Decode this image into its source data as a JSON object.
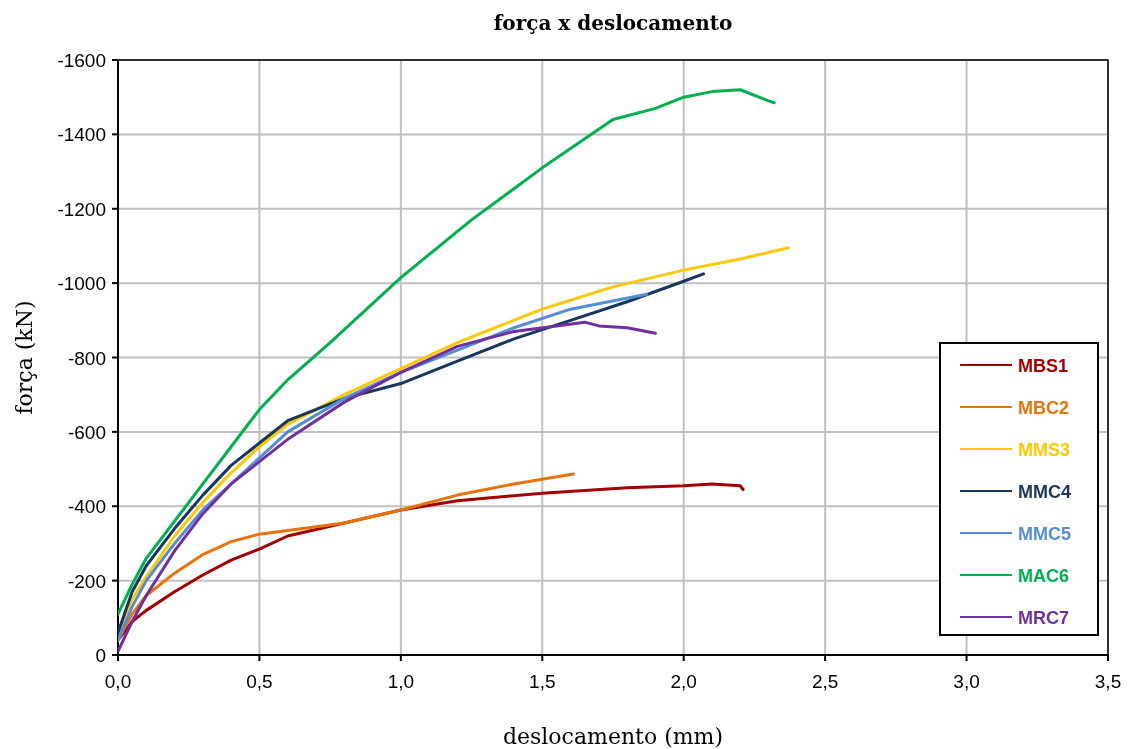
{
  "chart_data": {
    "type": "line",
    "title": "força x  deslocamento",
    "xlabel": "deslocamento (mm)",
    "ylabel": "força (kN)",
    "xlim": [
      0,
      3.5
    ],
    "ylim": [
      0,
      -1600
    ],
    "xticks": [
      {
        "value": 0,
        "label": "0,0"
      },
      {
        "value": 0.5,
        "label": "0,5"
      },
      {
        "value": 1,
        "label": "1,0"
      },
      {
        "value": 1.5,
        "label": "1,5"
      },
      {
        "value": 2,
        "label": "2,0"
      },
      {
        "value": 2.5,
        "label": "2,5"
      },
      {
        "value": 3,
        "label": "3,0"
      },
      {
        "value": 3.5,
        "label": "3,5"
      }
    ],
    "yticks": [
      0,
      -200,
      -400,
      -600,
      -800,
      -1000,
      -1200,
      -1400,
      -1600
    ],
    "grid": true,
    "legend": "right",
    "marker": "none",
    "line_style": "solid",
    "series": [
      {
        "name": "MBS1",
        "color": "#a00000",
        "x": [
          0,
          0.05,
          0.1,
          0.2,
          0.3,
          0.4,
          0.5,
          0.6,
          0.8,
          1.0,
          1.2,
          1.5,
          1.8,
          2.0,
          2.1,
          2.2,
          2.21
        ],
        "values": [
          -40,
          -90,
          -120,
          -170,
          -215,
          -255,
          -285,
          -320,
          -355,
          -390,
          -415,
          -435,
          -450,
          -455,
          -460,
          -455,
          -445
        ]
      },
      {
        "name": "MBC2",
        "color": "#e8720c",
        "x": [
          0,
          0.05,
          0.1,
          0.2,
          0.3,
          0.4,
          0.5,
          0.6,
          0.8,
          1.0,
          1.2,
          1.4,
          1.61
        ],
        "values": [
          -40,
          -110,
          -160,
          -220,
          -270,
          -305,
          -325,
          -335,
          -355,
          -390,
          -430,
          -460,
          -487
        ]
      },
      {
        "name": "MMS3",
        "color": "#ffc800",
        "x": [
          0,
          0.05,
          0.1,
          0.2,
          0.3,
          0.4,
          0.5,
          0.6,
          0.8,
          1.0,
          1.2,
          1.5,
          1.75,
          2.0,
          2.2,
          2.37
        ],
        "values": [
          -60,
          -150,
          -210,
          -320,
          -410,
          -490,
          -560,
          -620,
          -700,
          -770,
          -840,
          -930,
          -990,
          -1035,
          -1065,
          -1095
        ]
      },
      {
        "name": "MMC4",
        "color": "#17375e",
        "x": [
          0,
          0.05,
          0.1,
          0.2,
          0.3,
          0.4,
          0.5,
          0.6,
          0.8,
          1.0,
          1.2,
          1.4,
          1.6,
          1.8,
          2.0,
          2.07
        ],
        "values": [
          -60,
          -170,
          -240,
          -340,
          -430,
          -510,
          -570,
          -630,
          -690,
          -730,
          -790,
          -850,
          -900,
          -950,
          -1005,
          -1025
        ]
      },
      {
        "name": "MMC5",
        "color": "#558ed5",
        "x": [
          0,
          0.05,
          0.1,
          0.2,
          0.3,
          0.4,
          0.5,
          0.6,
          0.8,
          1.0,
          1.2,
          1.4,
          1.6,
          1.87
        ],
        "values": [
          -40,
          -130,
          -200,
          -300,
          -390,
          -460,
          -530,
          -600,
          -690,
          -760,
          -820,
          -880,
          -930,
          -970
        ]
      },
      {
        "name": "MAC6",
        "color": "#00b050",
        "x": [
          0,
          0.05,
          0.1,
          0.2,
          0.3,
          0.4,
          0.5,
          0.6,
          0.75,
          1.0,
          1.25,
          1.5,
          1.75,
          1.9,
          2.0,
          2.1,
          2.2,
          2.3,
          2.32
        ],
        "values": [
          -110,
          -190,
          -260,
          -360,
          -460,
          -560,
          -660,
          -740,
          -840,
          -1015,
          -1170,
          -1310,
          -1440,
          -1470,
          -1500,
          -1515,
          -1520,
          -1490,
          -1485
        ]
      },
      {
        "name": "MRC7",
        "color": "#7030a0",
        "x": [
          0,
          0.05,
          0.1,
          0.2,
          0.3,
          0.4,
          0.5,
          0.6,
          0.8,
          1.0,
          1.2,
          1.4,
          1.55,
          1.65,
          1.7,
          1.8,
          1.9
        ],
        "values": [
          -10,
          -90,
          -160,
          -280,
          -380,
          -460,
          -520,
          -580,
          -680,
          -760,
          -830,
          -870,
          -885,
          -895,
          -885,
          -880,
          -865
        ]
      }
    ]
  }
}
